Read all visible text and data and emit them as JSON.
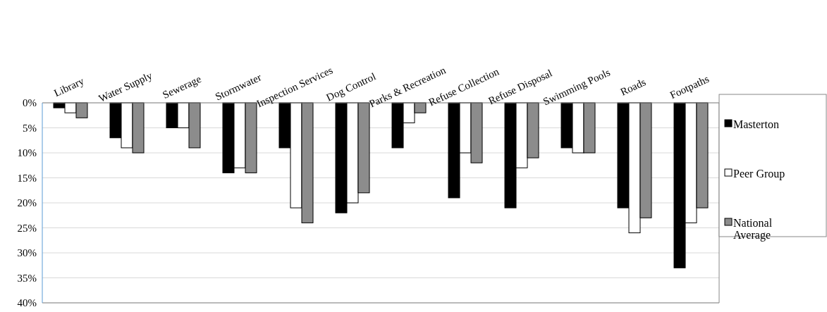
{
  "chart_data": {
    "type": "bar",
    "categories": [
      "Library",
      "Water Supply",
      "Sewerage",
      "Stormwater",
      "Inspection Services",
      "Dog Control",
      "Parks & Recreation",
      "Refuse Collection",
      "Refuse Disposal",
      "Swimming Pools",
      "Roads",
      "Footpaths"
    ],
    "series": [
      {
        "name": "Masterton",
        "color": "#000000",
        "values": [
          1,
          7,
          5,
          14,
          9,
          22,
          9,
          19,
          21,
          9,
          21,
          33
        ]
      },
      {
        "name": "Peer Group",
        "color": "#ffffff",
        "values": [
          2,
          9,
          5,
          13,
          21,
          20,
          4,
          10,
          13,
          10,
          26,
          24
        ]
      },
      {
        "name": "National Average",
        "color": "#8c8c8c",
        "values": [
          3,
          10,
          9,
          14,
          24,
          18,
          2,
          12,
          11,
          10,
          23,
          21
        ]
      }
    ],
    "ylim": [
      40,
      0
    ],
    "yticks": [
      {
        "value": 0,
        "label": "0%"
      },
      {
        "value": 5,
        "label": "5%"
      },
      {
        "value": 10,
        "label": "10%"
      },
      {
        "value": 15,
        "label": "15%"
      },
      {
        "value": 20,
        "label": "20%"
      },
      {
        "value": 25,
        "label": "25%"
      },
      {
        "value": 30,
        "label": "30%"
      },
      {
        "value": 35,
        "label": "35%"
      },
      {
        "value": 40,
        "label": "40%"
      }
    ],
    "grid": "y",
    "legend": "right"
  }
}
